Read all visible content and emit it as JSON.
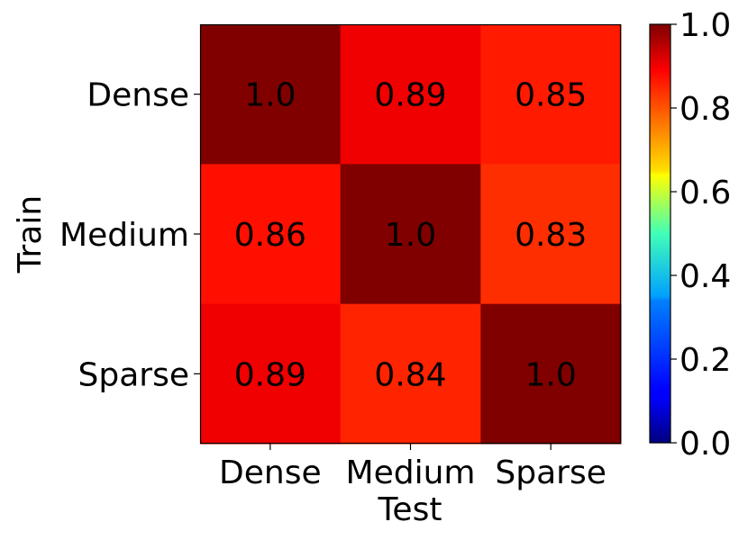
{
  "chart_data": {
    "type": "heatmap",
    "x_categories": [
      "Dense",
      "Medium",
      "Sparse"
    ],
    "y_categories": [
      "Dense",
      "Medium",
      "Sparse"
    ],
    "values": [
      [
        1.0,
        0.89,
        0.85
      ],
      [
        0.86,
        1.0,
        0.83
      ],
      [
        0.89,
        0.84,
        1.0
      ]
    ],
    "cell_labels": [
      [
        "1.0",
        "0.89",
        "0.85"
      ],
      [
        "0.86",
        "1.0",
        "0.83"
      ],
      [
        "0.89",
        "0.84",
        "1.0"
      ]
    ],
    "xlabel": "Test",
    "ylabel": "Train",
    "colormap": "jet",
    "colorbar": {
      "range": [
        0.0,
        1.0
      ],
      "ticks": [
        0.0,
        0.2,
        0.4,
        0.6,
        0.8,
        1.0
      ],
      "tick_labels": [
        "0.0",
        "0.2",
        "0.4",
        "0.6",
        "0.8",
        "1.0"
      ]
    }
  }
}
